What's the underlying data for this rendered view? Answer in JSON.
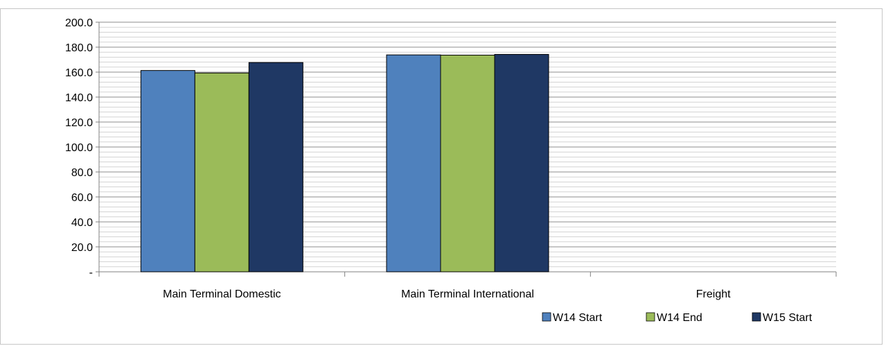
{
  "chart_data": {
    "type": "bar",
    "title": "",
    "xlabel": "",
    "ylabel": "",
    "categories": [
      "Main Terminal Domestic",
      "Main Terminal International",
      "Freight"
    ],
    "series": [
      {
        "name": "W14 Start",
        "values": [
          161.3,
          173.8,
          null
        ],
        "color": "#4f81bd"
      },
      {
        "name": "W14 End",
        "values": [
          159.3,
          173.6,
          null
        ],
        "color": "#9bbb59"
      },
      {
        "name": "W15 Start",
        "values": [
          167.7,
          174.2,
          null
        ],
        "color": "#1f3864"
      }
    ],
    "y_ticks": [
      "-",
      "20.0",
      "40.0",
      "60.0",
      "80.0",
      "100.0",
      "120.0",
      "140.0",
      "160.0",
      "180.0",
      "200.0"
    ],
    "ylim": [
      0,
      200
    ],
    "grid": true,
    "legend_position": "bottom-right"
  }
}
